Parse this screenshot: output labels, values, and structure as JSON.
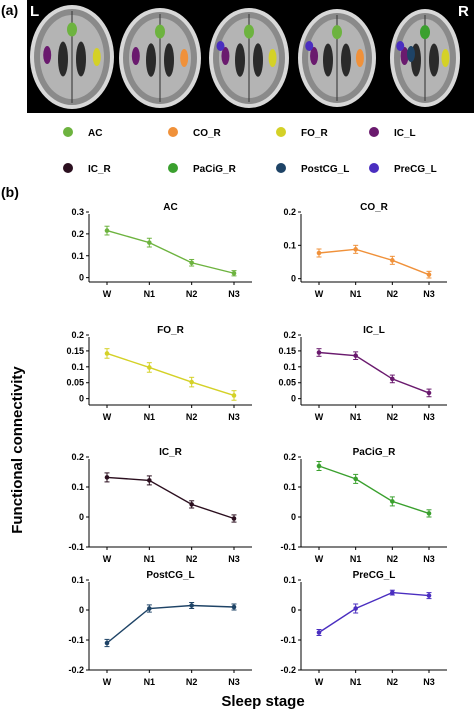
{
  "panel_labels": {
    "a": "(a)",
    "b": "(b)"
  },
  "brain": {
    "left_marker": "L",
    "right_marker": "R",
    "slices": 5
  },
  "legend": [
    {
      "label": "AC",
      "color": "#6db33f"
    },
    {
      "label": "CO_R",
      "color": "#f0913a"
    },
    {
      "label": "FO_R",
      "color": "#d4d127"
    },
    {
      "label": "IC_L",
      "color": "#6a1a6e"
    },
    {
      "label": "IC_R",
      "color": "#2b0f1f"
    },
    {
      "label": "PaCiG_R",
      "color": "#3aa02e"
    },
    {
      "label": "PostCG_L",
      "color": "#1e4366"
    },
    {
      "label": "PreCG_L",
      "color": "#4a2ec0"
    }
  ],
  "axis_titles": {
    "x": "Sleep stage",
    "y": "Functional connectivity"
  },
  "chart_data": [
    {
      "type": "line",
      "title": "AC",
      "color": "#6db33f",
      "categories": [
        "W",
        "N1",
        "N2",
        "N3"
      ],
      "values": [
        0.215,
        0.16,
        0.068,
        0.02
      ],
      "errors": [
        0.02,
        0.02,
        0.015,
        0.012
      ],
      "ylim": [
        -0.02,
        0.3
      ],
      "yticks": [
        "0",
        "0.1",
        "0.2",
        "0.3"
      ],
      "ytick_values": [
        0,
        0.1,
        0.2,
        0.3
      ]
    },
    {
      "type": "line",
      "title": "CO_R",
      "color": "#f0913a",
      "categories": [
        "W",
        "N1",
        "N2",
        "N3"
      ],
      "values": [
        0.077,
        0.088,
        0.055,
        0.012
      ],
      "errors": [
        0.012,
        0.012,
        0.012,
        0.01
      ],
      "ylim": [
        -0.01,
        0.2
      ],
      "yticks": [
        "0",
        "0.1",
        "0.2"
      ],
      "ytick_values": [
        0,
        0.1,
        0.2
      ]
    },
    {
      "type": "line",
      "title": "FO_R",
      "color": "#d4d127",
      "categories": [
        "W",
        "N1",
        "N2",
        "N3"
      ],
      "values": [
        0.142,
        0.098,
        0.052,
        0.01
      ],
      "errors": [
        0.015,
        0.015,
        0.015,
        0.015
      ],
      "ylim": [
        -0.02,
        0.2
      ],
      "yticks": [
        "0",
        "0.05",
        "0.1",
        "0.15",
        "0.2"
      ],
      "ytick_values": [
        0,
        0.05,
        0.1,
        0.15,
        0.2
      ]
    },
    {
      "type": "line",
      "title": "IC_L",
      "color": "#6a1a6e",
      "categories": [
        "W",
        "N1",
        "N2",
        "N3"
      ],
      "values": [
        0.145,
        0.135,
        0.062,
        0.018
      ],
      "errors": [
        0.012,
        0.012,
        0.012,
        0.012
      ],
      "ylim": [
        -0.02,
        0.2
      ],
      "yticks": [
        "0",
        "0.05",
        "0.1",
        "0.15",
        "0.2"
      ],
      "ytick_values": [
        0,
        0.05,
        0.1,
        0.15,
        0.2
      ]
    },
    {
      "type": "line",
      "title": "IC_R",
      "color": "#2b0f1f",
      "categories": [
        "W",
        "N1",
        "N2",
        "N3"
      ],
      "values": [
        0.132,
        0.122,
        0.042,
        -0.005
      ],
      "errors": [
        0.015,
        0.015,
        0.012,
        0.012
      ],
      "ylim": [
        -0.1,
        0.2
      ],
      "yticks": [
        "-0.1",
        "0",
        "0.1",
        "0.2"
      ],
      "ytick_values": [
        -0.1,
        0,
        0.1,
        0.2
      ]
    },
    {
      "type": "line",
      "title": "PaCiG_R",
      "color": "#3aa02e",
      "categories": [
        "W",
        "N1",
        "N2",
        "N3"
      ],
      "values": [
        0.17,
        0.127,
        0.052,
        0.012
      ],
      "errors": [
        0.015,
        0.015,
        0.015,
        0.012
      ],
      "ylim": [
        -0.1,
        0.2
      ],
      "yticks": [
        "-0.1",
        "0",
        "0.1",
        "0.2"
      ],
      "ytick_values": [
        -0.1,
        0,
        0.1,
        0.2
      ]
    },
    {
      "type": "line",
      "title": "PostCG_L",
      "color": "#1e4366",
      "categories": [
        "W",
        "N1",
        "N2",
        "N3"
      ],
      "values": [
        -0.11,
        0.005,
        0.015,
        0.01
      ],
      "errors": [
        0.012,
        0.012,
        0.01,
        0.01
      ],
      "ylim": [
        -0.2,
        0.1
      ],
      "yticks": [
        "-0.2",
        "-0.1",
        "0",
        "0.1"
      ],
      "ytick_values": [
        -0.2,
        -0.1,
        0,
        0.1
      ]
    },
    {
      "type": "line",
      "title": "PreCG_L",
      "color": "#4a2ec0",
      "categories": [
        "W",
        "N1",
        "N2",
        "N3"
      ],
      "values": [
        -0.075,
        0.005,
        0.058,
        0.048
      ],
      "errors": [
        0.01,
        0.015,
        0.008,
        0.01
      ],
      "ylim": [
        -0.2,
        0.1
      ],
      "yticks": [
        "-0.2",
        "-0.1",
        "0",
        "0.1"
      ],
      "ytick_values": [
        -0.2,
        -0.1,
        0,
        0.1
      ]
    }
  ]
}
